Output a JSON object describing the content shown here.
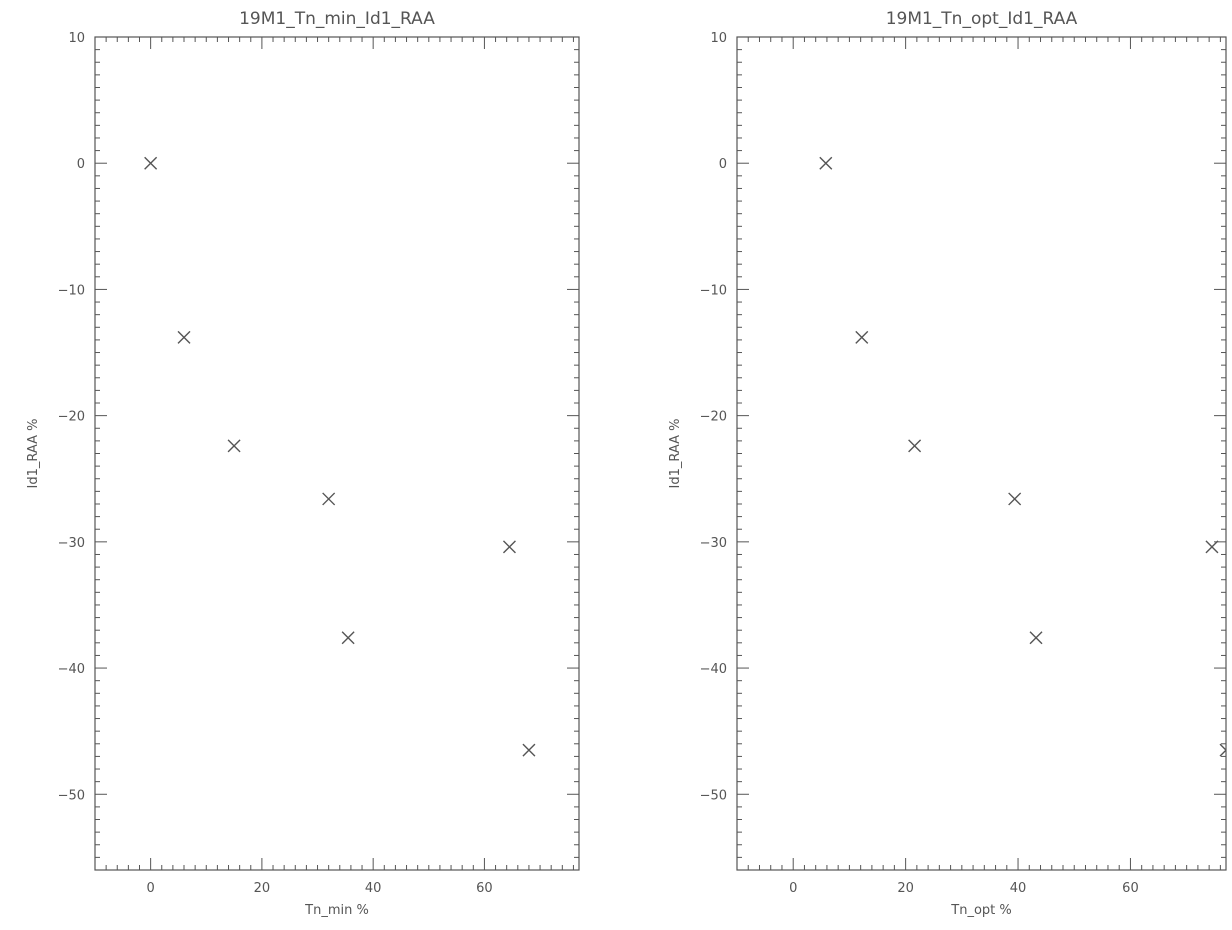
{
  "chart_data": [
    {
      "type": "scatter",
      "title": "19M1_Tn_min_Id1_RAA",
      "xlabel": "Tn_min %",
      "ylabel": "Id1_RAA %",
      "xlim": [
        -10,
        77
      ],
      "ylim": [
        -56,
        10
      ],
      "xticks": [
        0,
        20,
        40,
        60
      ],
      "yticks": [
        10,
        0,
        -10,
        -20,
        -30,
        -40,
        -50
      ],
      "marker": "x",
      "points": [
        {
          "x": 0,
          "y": 0
        },
        {
          "x": 6,
          "y": -13.8
        },
        {
          "x": 15,
          "y": -22.4
        },
        {
          "x": 32,
          "y": -26.6
        },
        {
          "x": 35.5,
          "y": -37.6
        },
        {
          "x": 64.5,
          "y": -30.4
        },
        {
          "x": 68,
          "y": -46.5
        }
      ],
      "grid": false
    },
    {
      "type": "scatter",
      "title": "19M1_Tn_opt_Id1_RAA",
      "xlabel": "Tn_opt %",
      "ylabel": "Id1_RAA %",
      "xlim": [
        -10,
        77
      ],
      "ylim": [
        -56,
        10
      ],
      "xticks": [
        0,
        20,
        40,
        60
      ],
      "yticks": [
        10,
        0,
        -10,
        -20,
        -30,
        -40,
        -50
      ],
      "marker": "x",
      "points": [
        {
          "x": 5.8,
          "y": 0
        },
        {
          "x": 12.2,
          "y": -13.8
        },
        {
          "x": 21.6,
          "y": -22.4
        },
        {
          "x": 39.4,
          "y": -26.6
        },
        {
          "x": 43.2,
          "y": -37.6
        },
        {
          "x": 74.5,
          "y": -30.4
        },
        {
          "x": 77,
          "y": -46.5
        }
      ],
      "grid": false
    }
  ]
}
